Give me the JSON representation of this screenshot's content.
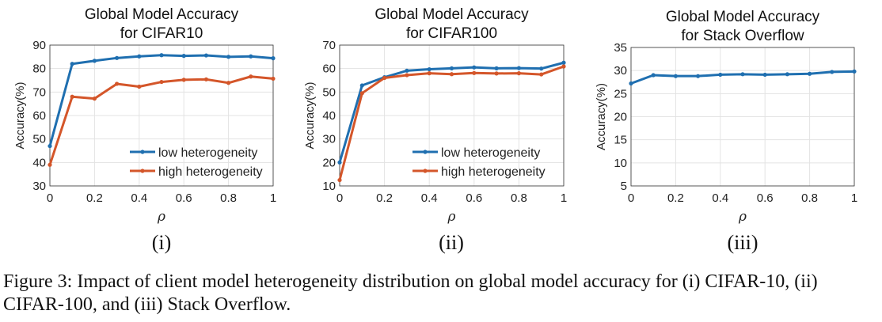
{
  "chart_data": [
    {
      "type": "line",
      "title": [
        "Global Model Accuracy",
        "for CIFAR10"
      ],
      "xlabel": "ρ",
      "ylabel": "Accuracy(%)",
      "xlim": [
        0,
        1
      ],
      "ylim": [
        30,
        90
      ],
      "xticks": [
        "0",
        "0.2",
        "0.4",
        "0.6",
        "0.8",
        "1"
      ],
      "yticks": [
        "30",
        "40",
        "50",
        "60",
        "70",
        "80",
        "90"
      ],
      "grid": true,
      "legend": "bottom-right",
      "x": [
        0,
        0.1,
        0.2,
        0.3,
        0.4,
        0.5,
        0.6,
        0.7,
        0.8,
        0.9,
        1
      ],
      "series": [
        {
          "name": "low heterogeneity",
          "color": "#1f6fb0",
          "values": [
            47,
            82,
            83.3,
            84.5,
            85.2,
            85.7,
            85.4,
            85.6,
            85,
            85.2,
            84.4
          ]
        },
        {
          "name": "high heterogeneity",
          "color": "#d4562a",
          "values": [
            39,
            68,
            67.2,
            73.5,
            72.3,
            74.3,
            75.2,
            75.4,
            73.9,
            76.6,
            75.7
          ]
        }
      ],
      "sublabel": "(i)"
    },
    {
      "type": "line",
      "title": [
        "Global Model Accuracy",
        "for CIFAR100"
      ],
      "xlabel": "ρ",
      "ylabel": "Accuracy(%)",
      "xlim": [
        0,
        1
      ],
      "ylim": [
        10,
        70
      ],
      "xticks": [
        "0",
        "0.2",
        "0.4",
        "0.6",
        "0.8",
        "1"
      ],
      "yticks": [
        "10",
        "20",
        "30",
        "40",
        "50",
        "60",
        "70"
      ],
      "grid": true,
      "legend": "bottom-right",
      "x": [
        0,
        0.1,
        0.2,
        0.3,
        0.4,
        0.5,
        0.6,
        0.7,
        0.8,
        0.9,
        1
      ],
      "series": [
        {
          "name": "low heterogeneity",
          "color": "#1f6fb0",
          "values": [
            20,
            52.8,
            56.3,
            59.1,
            59.7,
            60.1,
            60.5,
            60.1,
            60.2,
            60,
            62.5
          ]
        },
        {
          "name": "high heterogeneity",
          "color": "#d4562a",
          "values": [
            12.5,
            49.5,
            56,
            57.2,
            58,
            57.6,
            58.1,
            57.9,
            58,
            57.5,
            60.9
          ]
        }
      ],
      "sublabel": "(ii)"
    },
    {
      "type": "line",
      "title": [
        "Global Model Accuracy",
        "for Stack Overflow"
      ],
      "xlabel": "ρ",
      "ylabel": "Accuracy(%)",
      "xlim": [
        0,
        1
      ],
      "ylim": [
        5,
        35
      ],
      "xticks": [
        "0",
        "0.2",
        "0.4",
        "0.6",
        "0.8",
        "1"
      ],
      "yticks": [
        "5",
        "10",
        "15",
        "20",
        "25",
        "30",
        "35"
      ],
      "grid": true,
      "x": [
        0,
        0.1,
        0.2,
        0.3,
        0.4,
        0.5,
        0.6,
        0.7,
        0.8,
        0.9,
        1
      ],
      "series": [
        {
          "color": "#1f6fb0",
          "values": [
            27.2,
            29,
            28.8,
            28.8,
            29.1,
            29.2,
            29.1,
            29.2,
            29.3,
            29.7,
            29.8
          ]
        }
      ],
      "sublabel": "(iii)"
    }
  ],
  "caption": "Figure 3:  Impact of client model heterogeneity distribution on global model accuracy for (i) CIFAR-10, (ii) CIFAR-100, and (iii) Stack Overflow."
}
